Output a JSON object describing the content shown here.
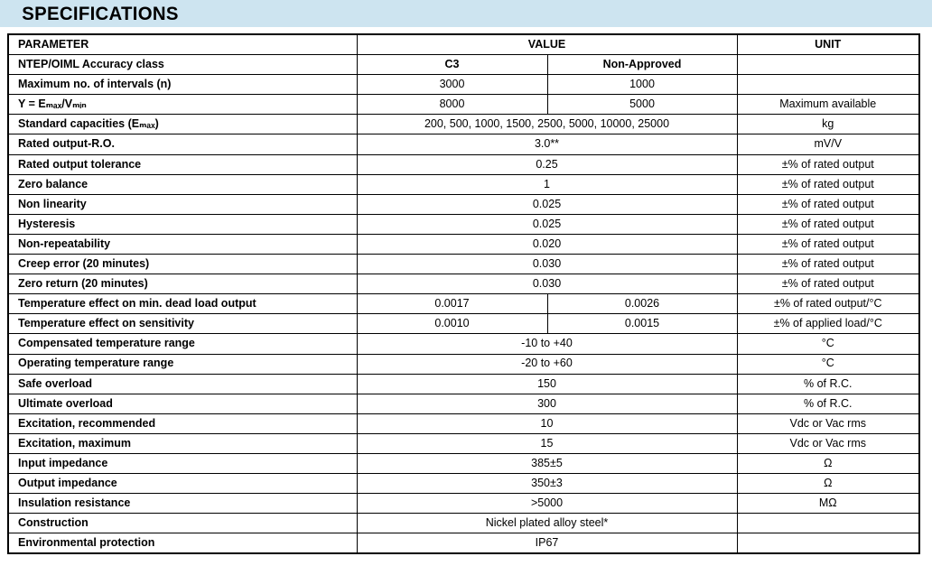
{
  "page_title": "SPECIFICATIONS",
  "colors": {
    "header_bar_bg": "#cde4f0",
    "border": "#000000",
    "text": "#000000",
    "background": "#ffffff"
  },
  "table": {
    "column_headers": {
      "parameter": "PARAMETER",
      "value": "VALUE",
      "unit": "UNIT"
    },
    "rows": [
      {
        "parameter": "NTEP/OIML Accuracy class",
        "values": [
          "C3",
          "Non-Approved"
        ],
        "unit": "",
        "bold_values": true
      },
      {
        "parameter": "Maximum no. of intervals (n)",
        "values": [
          "3000",
          "1000"
        ],
        "unit": "",
        "bold_values": false
      },
      {
        "parameter": "Y = Eₘₐₓ/Vₘᵢₙ",
        "values": [
          "8000",
          "5000"
        ],
        "unit": "Maximum available",
        "bold_values": false
      },
      {
        "parameter": "Standard capacities (Eₘₐₓ)",
        "values": [
          "200, 500, 1000, 1500, 2500, 5000, 10000, 25000"
        ],
        "unit": "kg",
        "bold_values": false
      },
      {
        "parameter": "Rated output-R.O.",
        "values": [
          "3.0**"
        ],
        "unit": "mV/V",
        "bold_values": false
      },
      {
        "parameter": "Rated output tolerance",
        "values": [
          "0.25"
        ],
        "unit": "±% of rated output",
        "bold_values": false
      },
      {
        "parameter": "Zero balance",
        "values": [
          "1"
        ],
        "unit": "±% of rated output",
        "bold_values": false
      },
      {
        "parameter": "Non linearity",
        "values": [
          "0.025"
        ],
        "unit": "±% of rated output",
        "bold_values": false
      },
      {
        "parameter": "Hysteresis",
        "values": [
          "0.025"
        ],
        "unit": "±% of rated output",
        "bold_values": false
      },
      {
        "parameter": "Non-repeatability",
        "values": [
          "0.020"
        ],
        "unit": "±% of rated output",
        "bold_values": false
      },
      {
        "parameter": "Creep error (20 minutes)",
        "values": [
          "0.030"
        ],
        "unit": "±% of rated output",
        "bold_values": false
      },
      {
        "parameter": "Zero return (20 minutes)",
        "values": [
          "0.030"
        ],
        "unit": "±% of rated output",
        "bold_values": false
      },
      {
        "parameter": "Temperature effect on min. dead load output",
        "values": [
          "0.0017",
          "0.0026"
        ],
        "unit": "±% of rated output/°C",
        "bold_values": false
      },
      {
        "parameter": "Temperature effect on sensitivity",
        "values": [
          "0.0010",
          "0.0015"
        ],
        "unit": "±% of applied load/°C",
        "bold_values": false
      },
      {
        "parameter": "Compensated temperature range",
        "values": [
          "-10 to +40"
        ],
        "unit": "°C",
        "bold_values": false
      },
      {
        "parameter": "Operating temperature range",
        "values": [
          "-20 to +60"
        ],
        "unit": "°C",
        "bold_values": false
      },
      {
        "parameter": "Safe overload",
        "values": [
          "150"
        ],
        "unit": "% of R.C.",
        "bold_values": false
      },
      {
        "parameter": "Ultimate overload",
        "values": [
          "300"
        ],
        "unit": "% of R.C.",
        "bold_values": false
      },
      {
        "parameter": "Excitation, recommended",
        "values": [
          "10"
        ],
        "unit": "Vdc or Vac rms",
        "bold_values": false
      },
      {
        "parameter": "Excitation, maximum",
        "values": [
          "15"
        ],
        "unit": "Vdc or Vac rms",
        "bold_values": false
      },
      {
        "parameter": "Input impedance",
        "values": [
          "385±5"
        ],
        "unit": "Ω",
        "bold_values": false
      },
      {
        "parameter": "Output impedance",
        "values": [
          "350±3"
        ],
        "unit": "Ω",
        "bold_values": false
      },
      {
        "parameter": "Insulation resistance",
        "values": [
          ">5000"
        ],
        "unit": "MΩ",
        "bold_values": false
      },
      {
        "parameter": "Construction",
        "values": [
          "Nickel plated alloy steel*"
        ],
        "unit": "",
        "bold_values": false
      },
      {
        "parameter": "Environmental protection",
        "values": [
          "IP67"
        ],
        "unit": "",
        "bold_values": false
      }
    ]
  }
}
